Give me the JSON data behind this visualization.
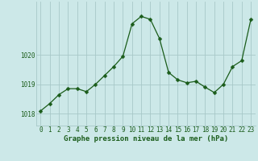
{
  "x": [
    0,
    1,
    2,
    3,
    4,
    5,
    6,
    7,
    8,
    9,
    10,
    11,
    12,
    13,
    14,
    15,
    16,
    17,
    18,
    19,
    20,
    21,
    22,
    23
  ],
  "y": [
    1018.1,
    1018.35,
    1018.65,
    1018.85,
    1018.85,
    1018.75,
    1019.0,
    1019.3,
    1019.6,
    1019.95,
    1021.05,
    1021.3,
    1021.2,
    1020.55,
    1019.4,
    1019.15,
    1019.05,
    1019.1,
    1018.9,
    1018.72,
    1019.0,
    1019.6,
    1019.8,
    1021.2
  ],
  "line_color": "#1a5c1a",
  "marker": "D",
  "marker_size": 2.5,
  "bg_color": "#cce8e8",
  "grid_color": "#a8c8c8",
  "xlabel": "Graphe pression niveau de la mer (hPa)",
  "xlabel_color": "#1a5c1a",
  "xlabel_fontsize": 6.5,
  "tick_label_color": "#1a5c1a",
  "tick_fontsize": 5.5,
  "ytick_values": [
    1018,
    1019,
    1020
  ],
  "ytick_labels": [
    "1018",
    "1019",
    "1020"
  ],
  "ylim": [
    1017.6,
    1021.8
  ],
  "xlim": [
    -0.5,
    23.5
  ],
  "xtick_labels": [
    "0",
    "1",
    "2",
    "3",
    "4",
    "5",
    "6",
    "7",
    "8",
    "9",
    "10",
    "11",
    "12",
    "13",
    "14",
    "15",
    "16",
    "17",
    "18",
    "19",
    "20",
    "21",
    "22",
    "23"
  ]
}
